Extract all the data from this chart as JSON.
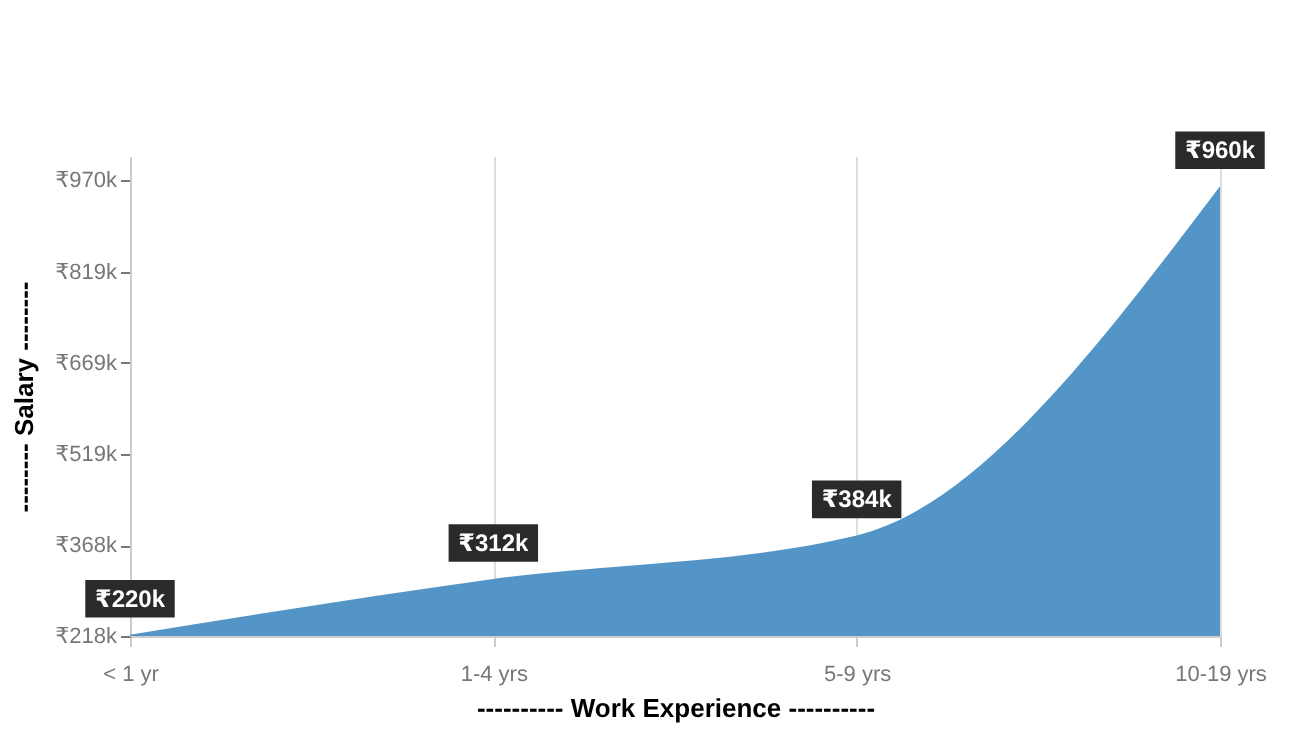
{
  "chart_data": {
    "type": "area",
    "xlabel": "---------- Work Experience ----------",
    "ylabel": "-------- Salary --------",
    "categories": [
      "< 1 yr",
      "1-4 yrs",
      "5-9 yrs",
      "10-19 yrs"
    ],
    "series": [
      {
        "color": "#4a8fc4",
        "values": [
          220,
          312,
          384,
          960
        ]
      }
    ],
    "value_labels": [
      "₹220k",
      "₹312k",
      "₹384k",
      "₹960k"
    ],
    "ylim": [
      218,
      1010
    ],
    "yticks": [
      {
        "value": 218,
        "label": "₹218k"
      },
      {
        "value": 368,
        "label": "₹368k"
      },
      {
        "value": 519,
        "label": "₹519k"
      },
      {
        "value": 669,
        "label": "₹669k"
      },
      {
        "value": 819,
        "label": "₹819k"
      },
      {
        "value": 970,
        "label": "₹970k"
      }
    ],
    "grid": "x"
  }
}
